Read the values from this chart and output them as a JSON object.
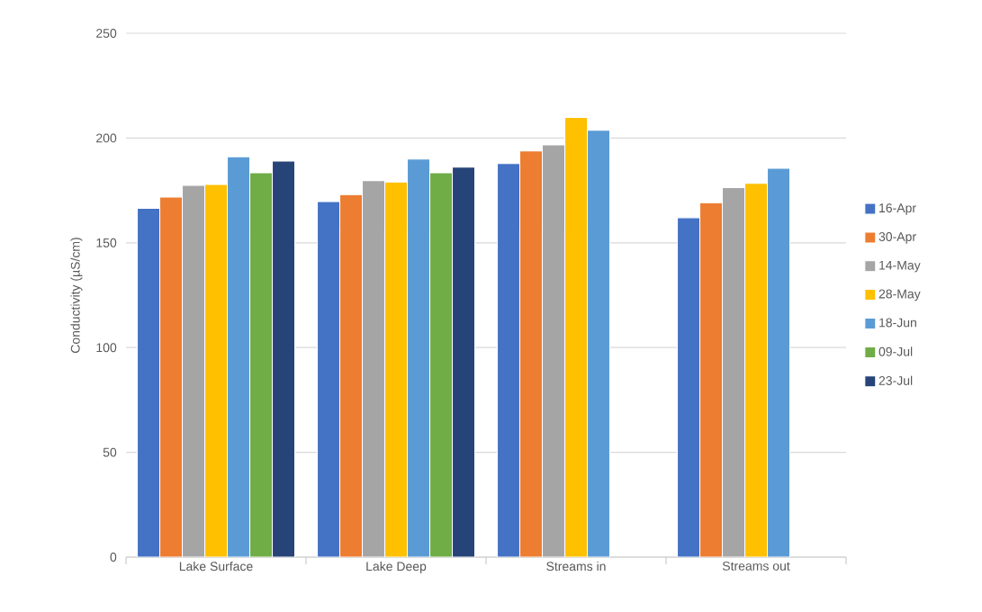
{
  "chart_data": {
    "type": "bar",
    "ylabel": "Conductivity (µS/cm)",
    "categories": [
      "Lake Surface",
      "Lake Deep",
      "Streams in",
      "Streams out"
    ],
    "series": [
      {
        "name": "16-Apr",
        "color": "#4472c4",
        "values": [
          166.5,
          169.7,
          187.8,
          162
        ]
      },
      {
        "name": "30-Apr",
        "color": "#ed7d31",
        "values": [
          171.8,
          173,
          193.9,
          169.1
        ]
      },
      {
        "name": "14-May",
        "color": "#a5a5a5",
        "values": [
          177.4,
          179.7,
          196.7,
          176.3
        ]
      },
      {
        "name": "28-May",
        "color": "#ffc000",
        "values": [
          177.8,
          179,
          209.9,
          178.4
        ]
      },
      {
        "name": "18-Jun",
        "color": "#5b9bd5",
        "values": [
          191.1,
          190,
          203.7,
          185.6
        ]
      },
      {
        "name": "09-Jul",
        "color": "#70ad47",
        "values": [
          183.4,
          183.4,
          null,
          null
        ]
      },
      {
        "name": "23-Jul",
        "color": "#264478",
        "values": [
          189,
          186.1,
          null,
          null
        ]
      }
    ],
    "ylim": [
      0,
      250
    ],
    "yticks": [
      0,
      50,
      100,
      150,
      200,
      250
    ],
    "grid": "y",
    "legend": "right"
  }
}
